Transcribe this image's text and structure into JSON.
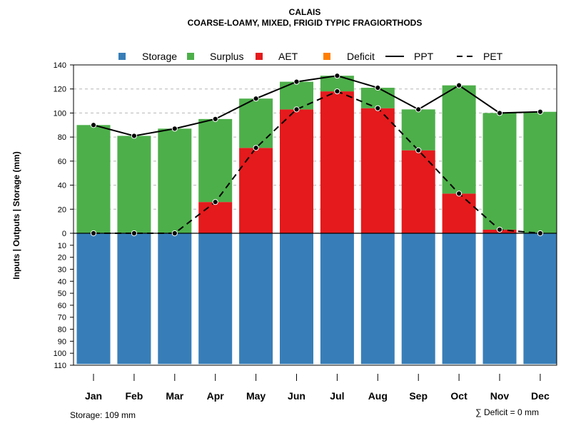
{
  "chart_data": {
    "type": "bar",
    "title": "CALAIS",
    "subtitle": "COARSE-LOAMY, MIXED, FRIGID TYPIC FRAGIORTHODS",
    "ylabel": "Inputs | Outputs | Storage    (mm)",
    "categories": [
      "Jan",
      "Feb",
      "Mar",
      "Apr",
      "May",
      "Jun",
      "Jul",
      "Aug",
      "Sep",
      "Oct",
      "Nov",
      "Dec"
    ],
    "ylim_positive": [
      0,
      140
    ],
    "ylim_negative": [
      0,
      110
    ],
    "y_ticks_positive": [
      "0",
      "20",
      "40",
      "60",
      "80",
      "100",
      "120",
      "140"
    ],
    "y_ticks_negative": [
      "10",
      "20",
      "30",
      "40",
      "50",
      "60",
      "70",
      "80",
      "90",
      "100",
      "110"
    ],
    "grid": true,
    "legend": {
      "placement": "top",
      "items": [
        {
          "label": "Storage",
          "kind": "box",
          "color": "#377EB8"
        },
        {
          "label": "Surplus",
          "kind": "box",
          "color": "#4DAF4A"
        },
        {
          "label": "AET",
          "kind": "box",
          "color": "#E41A1C"
        },
        {
          "label": "Deficit",
          "kind": "box",
          "color": "#FF7F00"
        },
        {
          "label": "PPT",
          "kind": "line-solid",
          "color": "#000000"
        },
        {
          "label": "PET",
          "kind": "line-dashed",
          "color": "#000000"
        }
      ]
    },
    "series": [
      {
        "name": "Storage",
        "color": "#377EB8",
        "values": [
          109,
          109,
          109,
          109,
          109,
          109,
          109,
          109,
          109,
          109,
          109,
          109
        ]
      },
      {
        "name": "AET",
        "color": "#E41A1C",
        "values": [
          0,
          0,
          0,
          26,
          71,
          103,
          118,
          104,
          69,
          33,
          3,
          0
        ]
      },
      {
        "name": "Surplus",
        "color": "#4DAF4A",
        "values": [
          90,
          81,
          87,
          69,
          41,
          23,
          13,
          17,
          34,
          90,
          97,
          101
        ]
      },
      {
        "name": "Deficit",
        "color": "#FF7F00",
        "values": [
          0,
          0,
          0,
          0,
          0,
          0,
          0,
          0,
          0,
          0,
          0,
          0
        ]
      },
      {
        "name": "PPT",
        "color": "#000000",
        "style": "solid",
        "values": [
          90,
          81,
          87,
          95,
          112,
          126,
          131,
          121,
          103,
          123,
          100,
          101
        ]
      },
      {
        "name": "PET",
        "color": "#000000",
        "style": "dashed",
        "values": [
          0,
          0,
          0,
          26,
          71,
          103,
          118,
          104,
          69,
          33,
          3,
          0
        ]
      }
    ],
    "footer_left": "Storage: 109 mm",
    "footer_right": "∑ Deficit = 0 mm"
  }
}
